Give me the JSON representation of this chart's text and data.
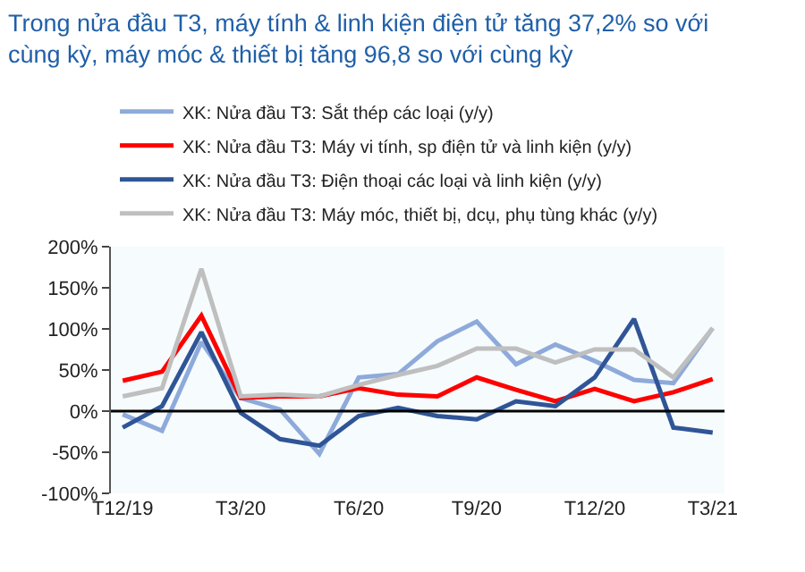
{
  "chart_data": {
    "type": "line",
    "title": "Trong nửa đầu T3, máy tính & linh kiện điện tử tăng 37,2% so với cùng kỳ, máy móc & thiết bị tăng 96,8 so với cùng kỳ",
    "categories": [
      "T12/19",
      null,
      null,
      "T3/20",
      null,
      null,
      "T6/20",
      null,
      null,
      "T9/20",
      null,
      null,
      "T12/20",
      null,
      null,
      "T3/21"
    ],
    "series": [
      {
        "name": "XK: Nửa đầu T3: Sắt thép các loại (y/y)",
        "color": "#8eaadb",
        "values": [
          -4,
          -24,
          84,
          16,
          2,
          -52,
          41,
          45,
          85,
          109,
          57,
          81,
          61,
          38,
          34,
          101
        ]
      },
      {
        "name": "XK: Nửa đầu T3: Máy vi tính, sp điện tử và linh kiện (y/y)",
        "color": "#ff0000",
        "values": [
          37,
          48,
          116,
          16,
          18,
          18,
          28,
          20,
          18,
          41,
          26,
          12,
          27,
          12,
          23,
          39
        ]
      },
      {
        "name": "XK: Nửa đầu T3: Điện thoại các loại và linh kiện (y/y)",
        "color": "#2f5597",
        "values": [
          -20,
          6,
          96,
          -2,
          -34,
          -42,
          -6,
          4,
          -6,
          -10,
          12,
          6,
          41,
          112,
          -20,
          -26
        ]
      },
      {
        "name": "XK: Nửa đầu T3: Máy móc, thiết bị, dcụ, phụ tùng khác (y/y)",
        "color": "#bfbfbf",
        "values": [
          18,
          28,
          173,
          18,
          20,
          18,
          32,
          44,
          55,
          76,
          76,
          59,
          75,
          75,
          41,
          101
        ]
      }
    ],
    "ylim": [
      -100,
      200
    ],
    "yticks": [
      {
        "value": -100,
        "label": "-100%"
      },
      {
        "value": -50,
        "label": "-50%"
      },
      {
        "value": 0,
        "label": "0%"
      },
      {
        "value": 50,
        "label": "50%"
      },
      {
        "value": 100,
        "label": "100%"
      },
      {
        "value": 150,
        "label": "150%"
      },
      {
        "value": 200,
        "label": "200%"
      }
    ],
    "ref_lines": [
      {
        "axis": "y",
        "value": 0,
        "color": "#000000",
        "line_style": "solid"
      }
    ],
    "grid": false,
    "legend": "top",
    "marker": "none",
    "line_style": "solid"
  }
}
